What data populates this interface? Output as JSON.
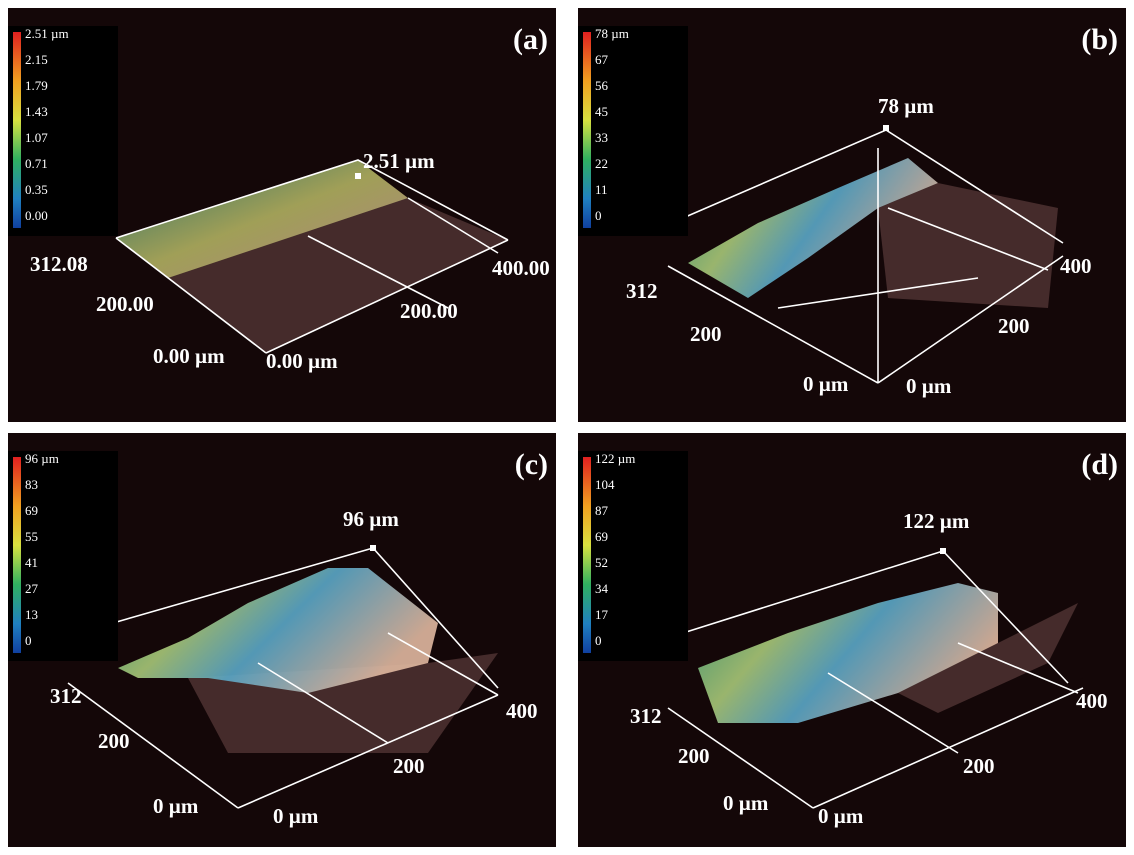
{
  "panels": [
    {
      "label": "(a)",
      "scale": [
        "2.51 µm",
        "2.15",
        "1.79",
        "1.43",
        "1.07",
        "0.71",
        "0.35",
        "0.00"
      ],
      "peak": "2.51 µm",
      "axis_labels": [
        "312.08",
        "200.00",
        "0.00 µm",
        "0.00 µm",
        "200.00",
        "400.00"
      ]
    },
    {
      "label": "(b)",
      "scale": [
        "78 µm",
        "67",
        "56",
        "45",
        "33",
        "22",
        "11",
        "0"
      ],
      "peak": "78 µm",
      "axis_labels": [
        "312",
        "200",
        "0 µm",
        "0 µm",
        "200",
        "400"
      ]
    },
    {
      "label": "(c)",
      "scale": [
        "96 µm",
        "83",
        "69",
        "55",
        "41",
        "27",
        "13",
        "0"
      ],
      "peak": "96 µm",
      "axis_labels": [
        "312",
        "200",
        "0 µm",
        "0 µm",
        "200",
        "400"
      ]
    },
    {
      "label": "(d)",
      "scale": [
        "122 µm",
        "104",
        "87",
        "69",
        "52",
        "34",
        "17",
        "0"
      ],
      "peak": "122 µm",
      "axis_labels": [
        "312",
        "200",
        "0 µm",
        "0 µm",
        "200",
        "400"
      ]
    }
  ]
}
